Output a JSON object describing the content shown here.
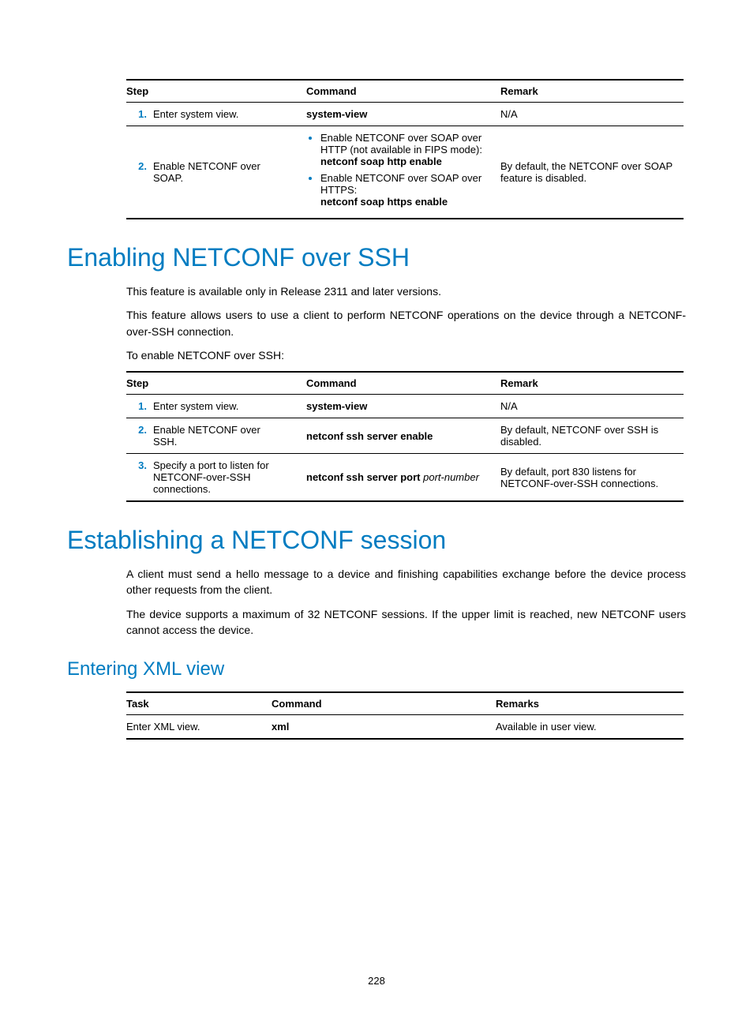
{
  "table1": {
    "headers": {
      "step": "Step",
      "command": "Command",
      "remark": "Remark"
    },
    "rows": [
      {
        "num": "1.",
        "step": "Enter system view.",
        "cmd_bold": "system-view",
        "remark": "N/A"
      },
      {
        "num": "2.",
        "step": "Enable NETCONF over SOAP.",
        "cmd_items": [
          {
            "pre": "Enable NETCONF over SOAP over HTTP (not available in FIPS mode):",
            "bold": "netconf soap http enable"
          },
          {
            "pre": "Enable NETCONF over SOAP over HTTPS:",
            "bold": "netconf soap https enable"
          }
        ],
        "remark": "By default, the NETCONF over SOAP feature is disabled."
      }
    ]
  },
  "h1_ssh": "Enabling NETCONF over SSH",
  "p_ssh_1": "This feature is available only in Release 2311 and later versions.",
  "p_ssh_2": "This feature allows users to use a client to perform NETCONF operations on the device through a NETCONF-over-SSH connection.",
  "p_ssh_3": "To enable NETCONF over SSH:",
  "table2": {
    "headers": {
      "step": "Step",
      "command": "Command",
      "remark": "Remark"
    },
    "rows": [
      {
        "num": "1.",
        "step": "Enter system view.",
        "cmd_bold": "system-view",
        "remark": "N/A"
      },
      {
        "num": "2.",
        "step": "Enable NETCONF over SSH.",
        "cmd_bold": "netconf ssh server enable",
        "remark": "By default, NETCONF over SSH is disabled."
      },
      {
        "num": "3.",
        "step": "Specify a port to listen for NETCONF-over-SSH connections.",
        "cmd_bold": "netconf ssh server port ",
        "cmd_ital": "port-number",
        "remark": "By default, port 830 listens for NETCONF-over-SSH connections."
      }
    ]
  },
  "h1_session": "Establishing a NETCONF session",
  "p_sess_1": "A client must send a hello message to a device and finishing capabilities exchange before the device process other requests from the client.",
  "p_sess_2": "The device supports a maximum of 32 NETCONF sessions. If the upper limit is reached, new NETCONF users cannot access the device.",
  "h2_xml": "Entering XML view",
  "table3": {
    "headers": {
      "task": "Task",
      "command": "Command",
      "remarks": "Remarks"
    },
    "rows": [
      {
        "task": "Enter XML view.",
        "cmd_bold": "xml",
        "remark": "Available in user view."
      }
    ]
  },
  "page_number": "228"
}
